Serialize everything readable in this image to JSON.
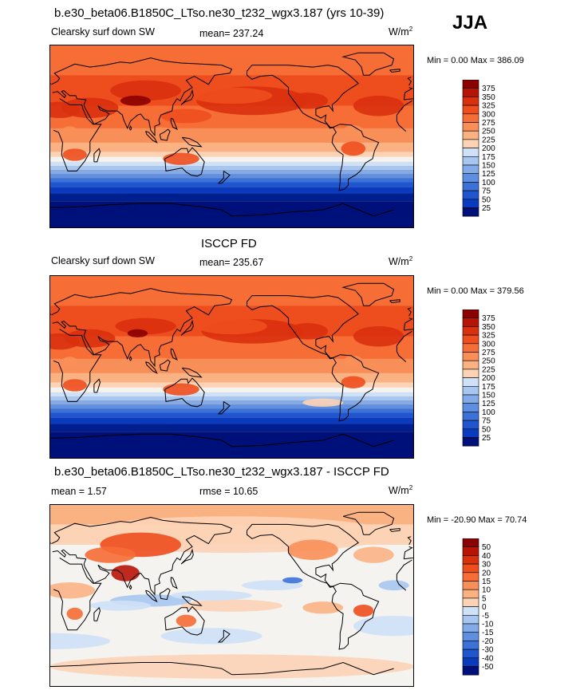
{
  "season": "JJA",
  "colors": {
    "pos": [
      "#8b0000",
      "#b81405",
      "#d9300e",
      "#ee4e1e",
      "#f66d35",
      "#f98f58",
      "#fbb283",
      "#fdd3b6",
      "#f5f3f0"
    ],
    "neg": [
      "#cfe1f7",
      "#a7c7f0",
      "#82abe8",
      "#5e8fe0",
      "#3c72d8",
      "#1f55cf",
      "#0a3bbf",
      "#001f8f",
      "#00107a"
    ],
    "coast": "#000000"
  },
  "panels": [
    {
      "title": "b.e30_beta06.B1850C_LTso.ne30_t232_wgx3.187 (yrs 10-39)",
      "left_label": "Clearsky surf down SW",
      "center_label": "mean= 237.24",
      "units": "W/m",
      "units_sup": "2",
      "minmax": "Min =    0.00 Max = 386.09"
    },
    {
      "title": "ISCCP FD",
      "left_label": "Clearsky surf down SW",
      "center_label": "mean= 235.67",
      "units": "W/m",
      "units_sup": "2",
      "minmax": "Min =    0.00 Max = 379.56"
    },
    {
      "title": "b.e30_beta06.B1850C_LTso.ne30_t232_wgx3.187 - ISCCP FD",
      "left_label": "mean =   1.57",
      "center_label": "rmse =  10.65",
      "units": "W/m",
      "units_sup": "2",
      "minmax": "Min = -20.90 Max =  70.74"
    }
  ],
  "chart_data": [
    {
      "type": "heatmap",
      "title": "b.e30_beta06.B1850C_LTso.ne30_t232_wgx3.187 (yrs 10-39)",
      "variable": "Clearsky surf down SW",
      "units": "W/m2",
      "mean": 237.24,
      "min": 0.0,
      "max": 386.09,
      "contour_levels": [
        25,
        50,
        75,
        100,
        125,
        150,
        175,
        200,
        225,
        250,
        275,
        300,
        325,
        350,
        375
      ],
      "colorbar_labels": [
        "375",
        "350",
        "325",
        "300",
        "275",
        "250",
        "225",
        "200",
        "175",
        "150",
        "125",
        "100",
        "75",
        "50",
        "25"
      ],
      "approx_zonal_profile": {
        "lat": [
          90,
          70,
          50,
          30,
          10,
          -10,
          -30,
          -50,
          -70,
          -90
        ],
        "value": [
          330,
          320,
          310,
          300,
          280,
          220,
          170,
          90,
          20,
          0
        ]
      }
    },
    {
      "type": "heatmap",
      "title": "ISCCP FD",
      "variable": "Clearsky surf down SW",
      "units": "W/m2",
      "mean": 235.67,
      "min": 0.0,
      "max": 379.56,
      "contour_levels": [
        25,
        50,
        75,
        100,
        125,
        150,
        175,
        200,
        225,
        250,
        275,
        300,
        325,
        350,
        375
      ],
      "colorbar_labels": [
        "375",
        "350",
        "325",
        "300",
        "275",
        "250",
        "225",
        "200",
        "175",
        "150",
        "125",
        "100",
        "75",
        "50",
        "25"
      ],
      "approx_zonal_profile": {
        "lat": [
          90,
          70,
          50,
          30,
          10,
          -10,
          -30,
          -50,
          -70,
          -90
        ],
        "value": [
          325,
          315,
          305,
          300,
          285,
          225,
          175,
          95,
          20,
          0
        ]
      }
    },
    {
      "type": "heatmap",
      "title": "b.e30_beta06.B1850C_LTso.ne30_t232_wgx3.187 - ISCCP FD",
      "variable": "difference",
      "units": "W/m2",
      "mean": 1.57,
      "rmse": 10.65,
      "min": -20.9,
      "max": 70.74,
      "contour_levels": [
        -50,
        -40,
        -30,
        -20,
        -15,
        -10,
        -5,
        0,
        5,
        10,
        15,
        20,
        30,
        40,
        50
      ],
      "colorbar_labels": [
        "50",
        "40",
        "30",
        "20",
        "15",
        "10",
        "5",
        "0",
        "-5",
        "-10",
        "-15",
        "-20",
        "-30",
        "-40",
        "-50"
      ]
    }
  ]
}
